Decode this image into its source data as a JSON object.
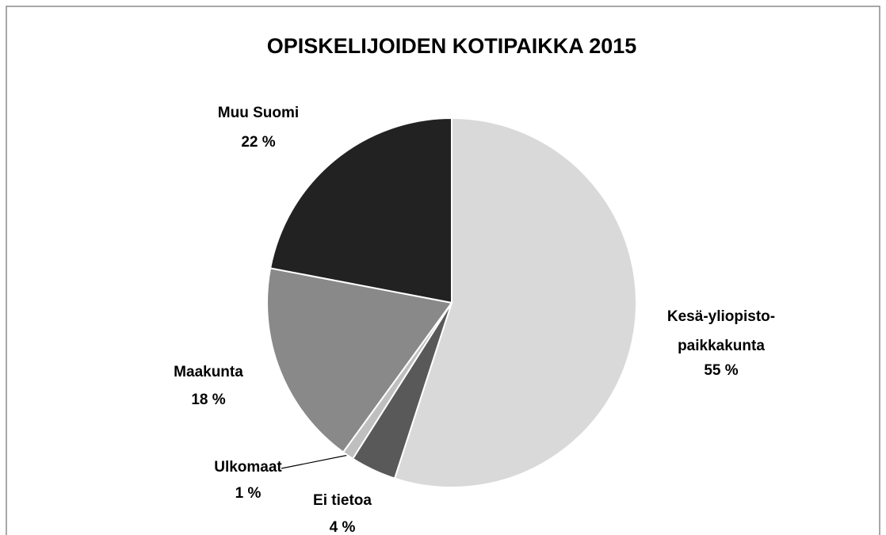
{
  "chart_data": {
    "type": "pie",
    "title": "OPISKELIJOIDEN KOTIPAIKKA 2015",
    "categories": [
      "Kesä-yliopisto-\npaikkakunta",
      "Ei tietoa",
      "Ulkomaat",
      "Maakunta",
      "Muu Suomi"
    ],
    "values": [
      55,
      4,
      1,
      18,
      22
    ],
    "value_labels": [
      "55 %",
      "4 %",
      "1 %",
      "18 %",
      "22 %"
    ],
    "colors": [
      "#d9d9d9",
      "#595959",
      "#bfbfbf",
      "#898989",
      "#222222"
    ]
  }
}
